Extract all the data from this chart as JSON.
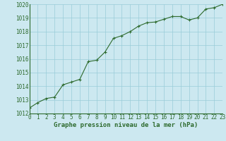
{
  "x": [
    0,
    1,
    2,
    3,
    4,
    5,
    6,
    7,
    8,
    9,
    10,
    11,
    12,
    13,
    14,
    15,
    16,
    17,
    18,
    19,
    20,
    21,
    22,
    23
  ],
  "y": [
    1012.4,
    1012.8,
    1013.1,
    1013.2,
    1014.1,
    1014.3,
    1014.5,
    1015.8,
    1015.9,
    1016.5,
    1017.5,
    1017.7,
    1018.0,
    1018.4,
    1018.65,
    1018.7,
    1018.9,
    1019.1,
    1019.1,
    1018.85,
    1019.0,
    1019.65,
    1019.75,
    1020.0
  ],
  "ylim": [
    1012,
    1020
  ],
  "xlim": [
    0,
    23
  ],
  "yticks": [
    1012,
    1013,
    1014,
    1015,
    1016,
    1017,
    1018,
    1019,
    1020
  ],
  "xticks": [
    0,
    1,
    2,
    3,
    4,
    5,
    6,
    7,
    8,
    9,
    10,
    11,
    12,
    13,
    14,
    15,
    16,
    17,
    18,
    19,
    20,
    21,
    22,
    23
  ],
  "line_color": "#2d6a2d",
  "marker_color": "#2d6a2d",
  "bg_color": "#cce8f0",
  "grid_color": "#99ccd9",
  "xlabel": "Graphe pression niveau de la mer (hPa)",
  "tick_color": "#2d6a2d",
  "font_size_label": 6.5,
  "font_size_tick": 5.5
}
